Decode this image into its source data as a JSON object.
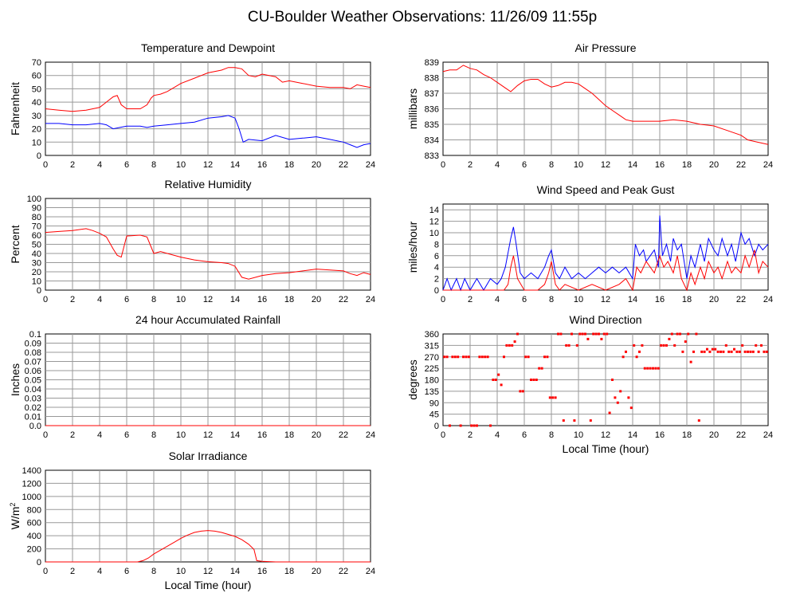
{
  "page": {
    "title": "CU-Boulder Weather Observations: 11/26/09 11:55p"
  },
  "chart_data": [
    {
      "id": "temp",
      "type": "line",
      "title": "Temperature and Dewpoint",
      "ylabel": "Fahrenheit",
      "xlabel": "",
      "xlim": [
        0,
        24
      ],
      "ylim": [
        0,
        70
      ],
      "xticks": [
        0,
        2,
        4,
        6,
        8,
        10,
        12,
        14,
        16,
        18,
        20,
        22,
        24
      ],
      "yticks": [
        0,
        10,
        20,
        30,
        40,
        50,
        60,
        70
      ],
      "grid": true,
      "series": [
        {
          "color": "#ff0000",
          "x": [
            0,
            1,
            2,
            3,
            4,
            4.5,
            5,
            5.3,
            5.6,
            6,
            7,
            7.5,
            7.8,
            8,
            8.5,
            9,
            10,
            11,
            12,
            13,
            13.5,
            14,
            14.5,
            15,
            15.5,
            16,
            17,
            17.5,
            18,
            19,
            20,
            21,
            22,
            22.5,
            23,
            23.5,
            24
          ],
          "y": [
            35,
            34,
            33,
            34,
            36,
            40,
            44,
            45,
            38,
            35,
            35,
            38,
            43,
            45,
            46,
            48,
            54,
            58,
            62,
            64,
            66,
            66,
            65,
            60,
            59,
            61,
            59,
            55,
            56,
            54,
            52,
            51,
            51,
            50,
            53,
            52,
            51
          ]
        },
        {
          "color": "#0000ff",
          "x": [
            0,
            1,
            2,
            3,
            4,
            4.5,
            5,
            5.5,
            6,
            7,
            7.5,
            8,
            9,
            10,
            11,
            12,
            13,
            13.5,
            14,
            14.3,
            14.6,
            15,
            16,
            17,
            18,
            19,
            20,
            21,
            22,
            22.5,
            23,
            23.5,
            24
          ],
          "y": [
            24,
            24,
            23,
            23,
            24,
            23,
            20,
            21,
            22,
            22,
            21,
            22,
            23,
            24,
            25,
            28,
            29,
            30,
            28,
            20,
            10,
            12,
            11,
            15,
            12,
            13,
            14,
            12,
            10,
            8,
            6,
            8,
            9
          ]
        }
      ]
    },
    {
      "id": "pressure",
      "type": "line",
      "title": "Air Pressure",
      "ylabel": "millibars",
      "xlabel": "",
      "xlim": [
        0,
        24
      ],
      "ylim": [
        833,
        839
      ],
      "xticks": [
        0,
        2,
        4,
        6,
        8,
        10,
        12,
        14,
        16,
        18,
        20,
        22,
        24
      ],
      "yticks": [
        833,
        834,
        835,
        836,
        837,
        838,
        839
      ],
      "grid": true,
      "series": [
        {
          "color": "#ff0000",
          "x": [
            0,
            0.5,
            1,
            1.5,
            2,
            2.5,
            3,
            3.5,
            4,
            4.5,
            5,
            5.5,
            6,
            6.5,
            7,
            7.5,
            8,
            8.5,
            9,
            9.5,
            10,
            10.5,
            11,
            11.5,
            12,
            12.5,
            13,
            13.5,
            14,
            15,
            16,
            17,
            18,
            19,
            20,
            21,
            22,
            22.5,
            23,
            23.5,
            24
          ],
          "y": [
            838.4,
            838.5,
            838.5,
            838.8,
            838.6,
            838.5,
            838.2,
            838.0,
            837.7,
            837.4,
            837.1,
            837.5,
            837.8,
            837.9,
            837.9,
            837.6,
            837.4,
            837.5,
            837.7,
            837.7,
            837.6,
            837.3,
            837.0,
            836.6,
            836.2,
            835.9,
            835.6,
            835.3,
            835.2,
            835.2,
            835.2,
            835.3,
            835.2,
            835.0,
            834.9,
            834.6,
            834.3,
            834.0,
            833.9,
            833.8,
            833.7
          ]
        }
      ]
    },
    {
      "id": "humidity",
      "type": "line",
      "title": "Relative Humidity",
      "ylabel": "Percent",
      "xlabel": "",
      "xlim": [
        0,
        24
      ],
      "ylim": [
        0,
        100
      ],
      "xticks": [
        0,
        2,
        4,
        6,
        8,
        10,
        12,
        14,
        16,
        18,
        20,
        22,
        24
      ],
      "yticks": [
        0,
        10,
        20,
        30,
        40,
        50,
        60,
        70,
        80,
        90,
        100
      ],
      "grid": true,
      "series": [
        {
          "color": "#ff0000",
          "x": [
            0,
            1,
            2,
            3,
            3.5,
            4,
            4.5,
            5,
            5.3,
            5.6,
            6,
            7,
            7.5,
            8,
            8.5,
            9,
            10,
            11,
            12,
            13,
            13.5,
            14,
            14.5,
            15,
            16,
            17,
            18,
            19,
            20,
            21,
            22,
            22.5,
            23,
            23.5,
            24
          ],
          "y": [
            63,
            64,
            65,
            67,
            65,
            62,
            58,
            45,
            38,
            36,
            59,
            60,
            58,
            40,
            42,
            40,
            36,
            33,
            31,
            30,
            29,
            26,
            14,
            12,
            16,
            18,
            19,
            21,
            23,
            22,
            21,
            18,
            16,
            19,
            17
          ]
        }
      ]
    },
    {
      "id": "wind_speed",
      "type": "line",
      "title": "Wind Speed and Peak Gust",
      "ylabel": "miles/hour",
      "xlabel": "",
      "xlim": [
        0,
        24
      ],
      "ylim": [
        0,
        15
      ],
      "xticks": [
        0,
        2,
        4,
        6,
        8,
        10,
        12,
        14,
        16,
        18,
        20,
        22,
        24
      ],
      "yticks": [
        0,
        2,
        4,
        6,
        8,
        10,
        12,
        14
      ],
      "grid": true,
      "series": [
        {
          "color": "#0000ff",
          "x": [
            0,
            0.3,
            0.6,
            1,
            1.3,
            1.6,
            2,
            2.5,
            3,
            3.5,
            4,
            4.3,
            4.6,
            5,
            5.2,
            5.4,
            5.7,
            6,
            6.5,
            7,
            7.5,
            7.8,
            8,
            8.3,
            8.6,
            9,
            9.5,
            10,
            10.5,
            11,
            11.5,
            12,
            12.5,
            13,
            13.5,
            14,
            14.2,
            14.5,
            14.8,
            15,
            15.3,
            15.6,
            15.9,
            16,
            16.2,
            16.5,
            16.8,
            17,
            17.3,
            17.6,
            18,
            18.3,
            18.6,
            19,
            19.3,
            19.6,
            20,
            20.3,
            20.6,
            21,
            21.3,
            21.6,
            22,
            22.3,
            22.6,
            23,
            23.3,
            23.6,
            24
          ],
          "y": [
            0,
            2,
            0,
            2,
            0,
            2,
            0,
            2,
            0,
            2,
            1,
            2,
            4,
            9,
            11,
            8,
            3,
            2,
            3,
            2,
            4,
            6,
            7,
            3,
            2,
            4,
            2,
            3,
            2,
            3,
            4,
            3,
            4,
            3,
            4,
            2,
            8,
            6,
            7,
            5,
            6,
            7,
            4,
            13,
            6,
            8,
            5,
            9,
            7,
            8,
            2,
            6,
            4,
            8,
            5,
            9,
            7,
            6,
            9,
            6,
            8,
            5,
            10,
            8,
            9,
            6,
            8,
            7,
            8
          ]
        },
        {
          "color": "#ff0000",
          "x": [
            0,
            1,
            2,
            3,
            4,
            4.5,
            4.8,
            5,
            5.2,
            5.5,
            6,
            7,
            7.5,
            7.8,
            8,
            8.3,
            8.6,
            9,
            10,
            11,
            12,
            13,
            13.5,
            14,
            14.3,
            14.6,
            15,
            15.3,
            15.6,
            16,
            16.3,
            16.6,
            17,
            17.3,
            17.6,
            18,
            18.3,
            18.6,
            19,
            19.3,
            19.6,
            20,
            20.3,
            20.6,
            21,
            21.3,
            21.6,
            22,
            22.3,
            22.6,
            23,
            23.3,
            23.6,
            24
          ],
          "y": [
            0,
            0,
            0,
            0,
            0,
            0,
            1,
            4,
            6,
            2,
            0,
            0,
            1,
            3,
            5,
            1,
            0,
            1,
            0,
            1,
            0,
            1,
            2,
            0,
            4,
            3,
            5,
            4,
            3,
            6,
            4,
            5,
            3,
            6,
            2,
            0,
            3,
            1,
            4,
            2,
            5,
            3,
            4,
            2,
            5,
            3,
            4,
            3,
            6,
            4,
            7,
            3,
            5,
            4
          ]
        }
      ]
    },
    {
      "id": "rainfall",
      "type": "line",
      "title": "24 hour Accumulated Rainfall",
      "ylabel": "Inches",
      "xlabel": "",
      "xlim": [
        0,
        24
      ],
      "ylim": [
        0,
        0.1
      ],
      "xticks": [
        0,
        2,
        4,
        6,
        8,
        10,
        12,
        14,
        16,
        18,
        20,
        22,
        24
      ],
      "yticks": [
        "0.0",
        "0.01",
        "0.02",
        "0.03",
        "0.04",
        "0.05",
        "0.06",
        "0.07",
        "0.08",
        "0.09",
        "0.1"
      ],
      "grid": true,
      "series": [
        {
          "color": "#ff0000",
          "x": [
            0,
            24
          ],
          "y": [
            0,
            0
          ]
        }
      ]
    },
    {
      "id": "wind_dir",
      "type": "scatter",
      "title": "Wind Direction",
      "ylabel": "degrees",
      "xlabel": "Local Time (hour)",
      "xlim": [
        0,
        24
      ],
      "ylim": [
        0,
        360
      ],
      "xticks": [
        0,
        2,
        4,
        6,
        8,
        10,
        12,
        14,
        16,
        18,
        20,
        22,
        24
      ],
      "yticks": [
        0,
        45,
        90,
        135,
        180,
        225,
        270,
        315,
        360
      ],
      "grid": true,
      "series": [
        {
          "color": "#ff0000",
          "x": [
            0.1,
            0.3,
            0.5,
            0.7,
            0.9,
            1.1,
            1.3,
            1.5,
            1.7,
            1.9,
            2.1,
            2.3,
            2.5,
            2.7,
            2.9,
            3.1,
            3.3,
            3.5,
            3.7,
            3.9,
            4.1,
            4.3,
            4.5,
            4.7,
            4.9,
            5.1,
            5.3,
            5.5,
            5.7,
            5.9,
            6.1,
            6.3,
            6.5,
            6.7,
            6.9,
            7.1,
            7.3,
            7.5,
            7.7,
            7.9,
            8.1,
            8.3,
            8.5,
            8.7,
            8.9,
            9.1,
            9.3,
            9.5,
            9.7,
            9.9,
            10.1,
            10.3,
            10.5,
            10.7,
            10.9,
            11.1,
            11.3,
            11.5,
            11.7,
            11.9,
            12.1,
            12.3,
            12.5,
            12.7,
            12.9,
            13.1,
            13.3,
            13.5,
            13.7,
            13.9,
            14.1,
            14.3,
            14.5,
            14.7,
            14.9,
            15.1,
            15.3,
            15.5,
            15.7,
            15.9,
            16.1,
            16.3,
            16.5,
            16.7,
            16.9,
            17.1,
            17.3,
            17.5,
            17.7,
            17.9,
            18.1,
            18.3,
            18.5,
            18.7,
            18.9,
            19.1,
            19.3,
            19.5,
            19.7,
            19.9,
            20.1,
            20.3,
            20.5,
            20.7,
            20.9,
            21.1,
            21.3,
            21.5,
            21.7,
            21.9,
            22.1,
            22.3,
            22.5,
            22.7,
            22.9,
            23.1,
            23.3,
            23.5,
            23.7,
            23.9
          ],
          "y": [
            270,
            270,
            0,
            270,
            270,
            270,
            0,
            270,
            270,
            270,
            0,
            0,
            0,
            270,
            270,
            270,
            270,
            0,
            180,
            180,
            200,
            160,
            270,
            315,
            315,
            315,
            330,
            360,
            135,
            135,
            270,
            270,
            180,
            180,
            180,
            225,
            225,
            270,
            270,
            110,
            110,
            110,
            360,
            360,
            20,
            315,
            315,
            360,
            20,
            315,
            360,
            360,
            360,
            340,
            20,
            360,
            360,
            360,
            340,
            360,
            360,
            50,
            180,
            110,
            90,
            135,
            270,
            290,
            110,
            70,
            315,
            270,
            290,
            315,
            225,
            225,
            225,
            225,
            225,
            225,
            315,
            315,
            315,
            340,
            360,
            315,
            360,
            360,
            290,
            330,
            360,
            250,
            290,
            360,
            20,
            290,
            290,
            300,
            290,
            300,
            300,
            290,
            290,
            290,
            315,
            290,
            290,
            300,
            290,
            290,
            315,
            290,
            290,
            290,
            290,
            315,
            290,
            315,
            290,
            290
          ]
        }
      ]
    },
    {
      "id": "solar",
      "type": "area",
      "title": "Solar Irradiance",
      "ylabel": "W/m2",
      "xlabel": "Local Time (hour)",
      "xlim": [
        0,
        24
      ],
      "ylim": [
        0,
        1400
      ],
      "xticks": [
        0,
        2,
        4,
        6,
        8,
        10,
        12,
        14,
        16,
        18,
        20,
        22,
        24
      ],
      "yticks": [
        0,
        200,
        400,
        600,
        800,
        1000,
        1200,
        1400
      ],
      "grid": true,
      "series": [
        {
          "color": "#ff0000",
          "x": [
            0,
            6.8,
            7.2,
            7.6,
            8,
            8.5,
            9,
            9.5,
            10,
            10.5,
            11,
            11.5,
            12,
            12.5,
            13,
            13.5,
            14,
            14.5,
            15,
            15.4,
            15.6,
            16,
            17,
            24
          ],
          "y": [
            0,
            0,
            20,
            60,
            120,
            180,
            240,
            300,
            360,
            410,
            450,
            470,
            480,
            470,
            450,
            420,
            390,
            340,
            270,
            190,
            20,
            10,
            0,
            0
          ]
        }
      ]
    }
  ]
}
